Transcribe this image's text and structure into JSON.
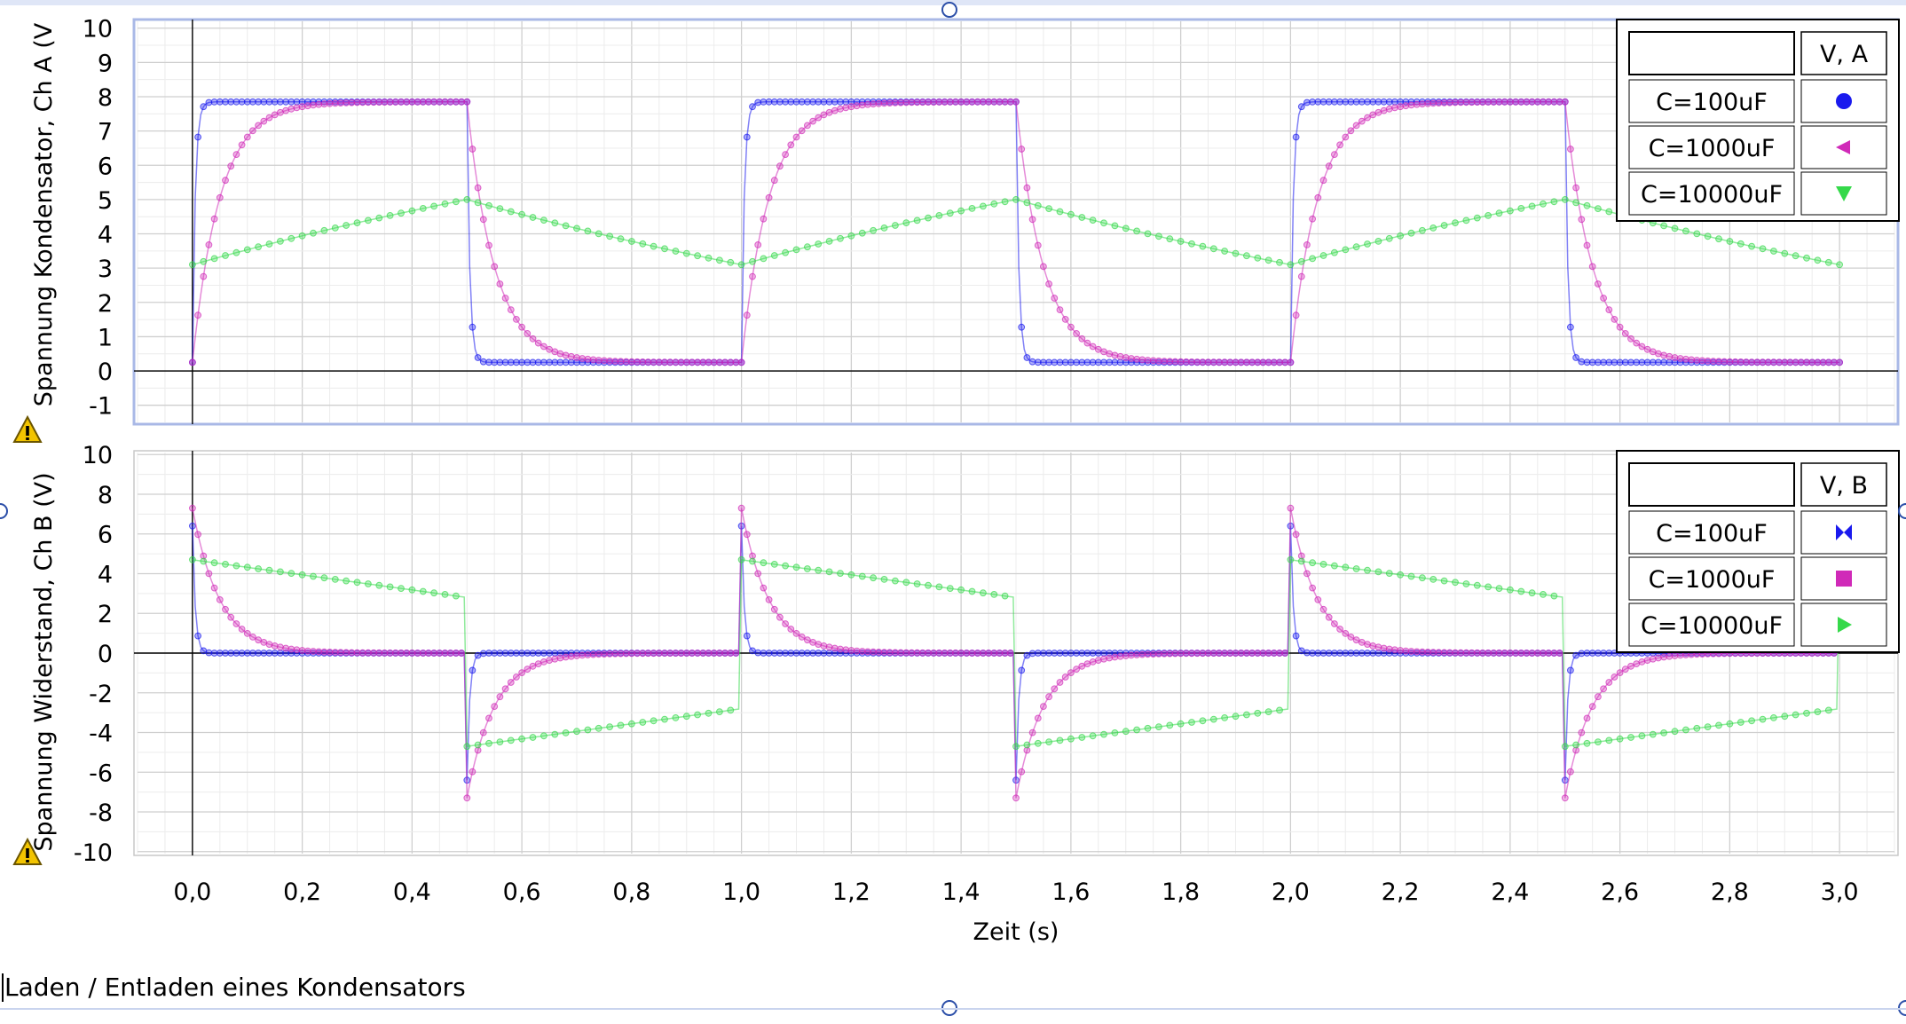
{
  "caption": "Laden / Entladen eines Kondensators",
  "chart_data": [
    {
      "type": "scatter",
      "ylabel": "Spannung Kondensator, Ch A (V",
      "xlabel": "Zeit (s)",
      "xlim": [
        -0.1,
        3.1
      ],
      "ylim": [
        -1.5,
        10.2
      ],
      "yticks": [
        "-1",
        "0",
        "1",
        "2",
        "3",
        "4",
        "5",
        "6",
        "7",
        "8",
        "9",
        "10"
      ],
      "grid": true,
      "legend_position": "top-right",
      "legend_header": "V, A",
      "series": [
        {
          "name": "C=100uF",
          "color": "#1a1aee",
          "marker": "circle",
          "tau": 0.005,
          "offset": 0.0,
          "hold": false,
          "sample": [
            [
              0.0,
              0.3
            ],
            [
              0.02,
              6.5
            ],
            [
              0.05,
              7.8
            ],
            [
              0.5,
              7.8
            ],
            [
              0.52,
              1.3
            ],
            [
              0.55,
              0.3
            ],
            [
              1.0,
              0.25
            ],
            [
              1.02,
              6.5
            ],
            [
              1.5,
              7.8
            ],
            [
              2.0,
              0.25
            ],
            [
              2.5,
              7.8
            ],
            [
              3.0,
              0.25
            ]
          ]
        },
        {
          "name": "C=1000uF",
          "color": "#d02ab8",
          "marker": "triangle-left",
          "tau": 0.05,
          "offset": 0.0,
          "hold": false,
          "sample": [
            [
              0.0,
              0.3
            ],
            [
              0.1,
              6.8
            ],
            [
              0.2,
              7.5
            ],
            [
              0.5,
              7.8
            ],
            [
              0.6,
              3.0
            ],
            [
              0.7,
              1.2
            ],
            [
              1.0,
              0.3
            ],
            [
              1.1,
              6.8
            ],
            [
              1.5,
              7.8
            ],
            [
              2.0,
              0.3
            ],
            [
              2.5,
              7.8
            ],
            [
              3.0,
              0.3
            ]
          ]
        },
        {
          "name": "C=10000uF",
          "color": "#35d94a",
          "marker": "triangle-down",
          "tau": 0.5,
          "offset": 0.0,
          "hold": false,
          "sample": [
            [
              0.0,
              3.1
            ],
            [
              0.5,
              5.0
            ],
            [
              1.0,
              3.1
            ],
            [
              1.5,
              5.0
            ],
            [
              2.0,
              3.1
            ],
            [
              2.5,
              5.0
            ],
            [
              3.0,
              3.1
            ]
          ]
        }
      ],
      "model": {
        "period": 1.0,
        "high": 8.0,
        "base": 0.0
      }
    },
    {
      "type": "scatter",
      "ylabel": "Spannung Widerstand, Ch B (V)",
      "xlabel": "Zeit (s)",
      "xlim": [
        -0.1,
        3.1
      ],
      "ylim": [
        -10.1,
        10.1
      ],
      "yticks": [
        "-10",
        "-8",
        "-6",
        "-4",
        "-2",
        "0",
        "2",
        "4",
        "6",
        "8",
        "10"
      ],
      "xticks": [
        "0,0",
        "0,2",
        "0,4",
        "0,6",
        "0,8",
        "1,0",
        "1,2",
        "1,4",
        "1,6",
        "1,8",
        "2,0",
        "2,2",
        "2,4",
        "2,6",
        "2,8",
        "3,0"
      ],
      "grid": true,
      "legend_position": "top-right",
      "legend_header": "V, B",
      "series": [
        {
          "name": "C=100uF",
          "color": "#1a1aee",
          "marker": "bowtie",
          "tau": 0.005,
          "sample": [
            [
              0.0,
              6.3
            ],
            [
              0.03,
              0.0
            ],
            [
              0.5,
              -6.3
            ],
            [
              0.53,
              0.0
            ],
            [
              1.0,
              6.3
            ],
            [
              1.5,
              -6.3
            ],
            [
              2.0,
              6.3
            ],
            [
              2.5,
              -6.3
            ],
            [
              3.0,
              0.0
            ]
          ]
        },
        {
          "name": "C=1000uF",
          "color": "#d02ab8",
          "marker": "square",
          "tau": 0.05,
          "sample": [
            [
              0.0,
              7.2
            ],
            [
              0.1,
              1.5
            ],
            [
              0.5,
              0.0
            ],
            [
              0.5,
              -7.3
            ],
            [
              0.6,
              -2.0
            ],
            [
              1.0,
              -0.1
            ],
            [
              1.0,
              7.2
            ],
            [
              1.5,
              -7.3
            ],
            [
              2.0,
              7.2
            ],
            [
              2.5,
              -7.3
            ],
            [
              3.0,
              -0.1
            ]
          ]
        },
        {
          "name": "C=10000uF",
          "color": "#35d94a",
          "marker": "triangle-right",
          "tau": 0.5,
          "sample": [
            [
              0.0,
              4.7
            ],
            [
              0.5,
              2.8
            ],
            [
              0.5,
              -4.7
            ],
            [
              1.0,
              -2.8
            ],
            [
              1.0,
              4.7
            ],
            [
              1.5,
              2.8
            ],
            [
              1.5,
              -4.7
            ],
            [
              2.0,
              -2.8
            ],
            [
              2.0,
              4.7
            ],
            [
              2.5,
              2.8
            ],
            [
              2.5,
              -4.7
            ],
            [
              3.0,
              -2.8
            ]
          ]
        }
      ]
    }
  ]
}
